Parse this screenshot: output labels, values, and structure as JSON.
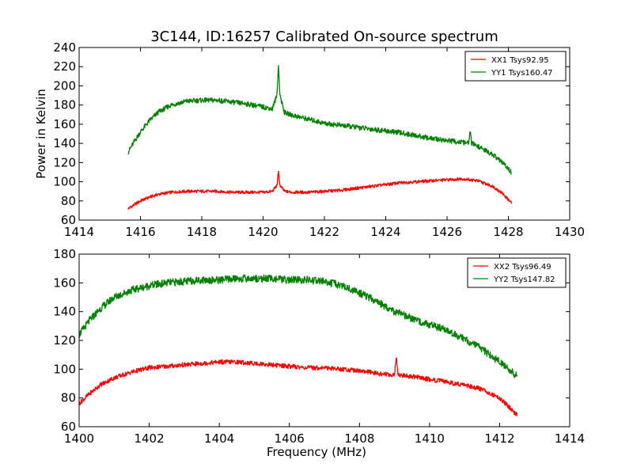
{
  "chart_data": [
    {
      "type": "line",
      "title": "3C144, ID:16257 Calibrated On-source spectrum",
      "xlabel": "",
      "ylabel": "Power in Kelvin",
      "xlim": [
        1414,
        1430
      ],
      "ylim": [
        60,
        240
      ],
      "xticks": [
        1414,
        1416,
        1418,
        1420,
        1422,
        1424,
        1426,
        1428,
        1430
      ],
      "yticks": [
        60,
        80,
        100,
        120,
        140,
        160,
        180,
        200,
        220,
        240
      ],
      "legend_position": "top-right",
      "series": [
        {
          "name": "XX1 Tsys92.95",
          "color": "#ff0000",
          "x": [
            1415.6,
            1415.8,
            1416.0,
            1416.3,
            1416.6,
            1417.0,
            1417.5,
            1418.0,
            1418.5,
            1419.0,
            1419.5,
            1420.0,
            1420.3,
            1420.45,
            1420.5,
            1420.55,
            1420.7,
            1421.0,
            1421.5,
            1422.0,
            1422.5,
            1423.0,
            1423.5,
            1424.0,
            1424.5,
            1425.0,
            1425.5,
            1426.0,
            1426.5,
            1427.0,
            1427.5,
            1427.8,
            1428.1
          ],
          "y": [
            72,
            76,
            80,
            84,
            87,
            89,
            90,
            90,
            90,
            89,
            89,
            89,
            90,
            96,
            110,
            96,
            90,
            89,
            89,
            90,
            91,
            93,
            95,
            97,
            99,
            100,
            101,
            102,
            103,
            101,
            95,
            88,
            78
          ]
        },
        {
          "name": "YY1 Tsys160.47",
          "color": "#008000",
          "x": [
            1415.6,
            1415.8,
            1416.0,
            1416.3,
            1416.6,
            1417.0,
            1417.5,
            1418.0,
            1418.5,
            1419.0,
            1419.5,
            1420.0,
            1420.3,
            1420.45,
            1420.5,
            1420.55,
            1420.7,
            1421.0,
            1421.5,
            1422.0,
            1422.5,
            1423.0,
            1423.5,
            1424.0,
            1424.5,
            1425.0,
            1425.5,
            1426.0,
            1426.5,
            1426.7,
            1426.75,
            1426.8,
            1427.0,
            1427.5,
            1427.8,
            1428.1
          ],
          "y": [
            131,
            142,
            152,
            164,
            173,
            180,
            184,
            185,
            185,
            183,
            181,
            178,
            176,
            190,
            222,
            190,
            172,
            169,
            165,
            161,
            159,
            157,
            155,
            153,
            151,
            148,
            145,
            143,
            141,
            140,
            153,
            140,
            137,
            128,
            120,
            110
          ]
        }
      ]
    },
    {
      "type": "line",
      "title": "",
      "xlabel": "Frequency (MHz)",
      "ylabel": "",
      "xlim": [
        1400,
        1414
      ],
      "ylim": [
        60,
        180
      ],
      "xticks": [
        1400,
        1402,
        1404,
        1406,
        1408,
        1410,
        1412,
        1414
      ],
      "yticks": [
        60,
        80,
        100,
        120,
        140,
        160,
        180
      ],
      "legend_position": "top-right",
      "series": [
        {
          "name": "XX2 Tsys96.49",
          "color": "#ff0000",
          "x": [
            1400.0,
            1400.3,
            1400.6,
            1401.0,
            1401.5,
            1402.0,
            1402.5,
            1403.0,
            1403.5,
            1404.0,
            1404.5,
            1405.0,
            1405.5,
            1406.0,
            1406.5,
            1407.0,
            1407.5,
            1408.0,
            1408.5,
            1409.0,
            1409.05,
            1409.1,
            1409.5,
            1410.0,
            1410.5,
            1411.0,
            1411.5,
            1412.0,
            1412.3,
            1412.5
          ],
          "y": [
            76,
            83,
            89,
            94,
            98,
            101,
            102,
            103,
            104,
            105,
            105,
            104,
            103,
            102,
            101,
            101,
            100,
            99,
            97,
            96,
            109,
            96,
            95,
            93,
            91,
            89,
            86,
            80,
            73,
            68
          ]
        },
        {
          "name": "YY2 Tsys147.82",
          "color": "#008000",
          "x": [
            1400.0,
            1400.3,
            1400.6,
            1401.0,
            1401.5,
            1402.0,
            1402.5,
            1403.0,
            1403.5,
            1404.0,
            1404.5,
            1405.0,
            1405.5,
            1406.0,
            1406.5,
            1407.0,
            1407.5,
            1408.0,
            1408.5,
            1409.0,
            1409.5,
            1410.0,
            1410.5,
            1411.0,
            1411.5,
            1412.0,
            1412.3,
            1412.5
          ],
          "y": [
            124,
            134,
            142,
            150,
            155,
            158,
            160,
            161,
            162,
            162,
            163,
            163,
            163,
            162,
            162,
            161,
            158,
            153,
            147,
            140,
            135,
            131,
            127,
            121,
            114,
            105,
            99,
            95
          ]
        }
      ]
    }
  ]
}
